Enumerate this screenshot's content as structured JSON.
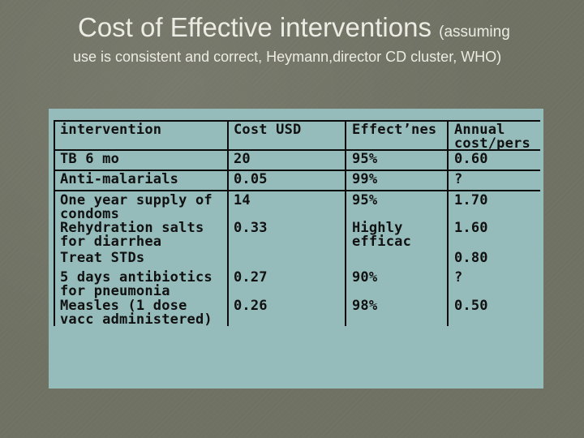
{
  "slide": {
    "title_main": "Cost of Effective interventions",
    "title_paren_start": "(assuming",
    "subtitle": "use is consistent and correct, Heymann,director CD cluster, WHO)"
  },
  "table": {
    "headers": [
      "intervention",
      "Cost USD",
      "Effect’nes",
      "Annual\ncost/pers"
    ],
    "rows": [
      [
        "TB 6 mo",
        "20",
        "95%",
        "0.60"
      ],
      [
        "Anti-malarials",
        "0.05",
        "99%",
        "?"
      ],
      [
        "One year supply of\ncondoms",
        "14",
        "95%",
        "1.70"
      ],
      [
        "Rehydration salts\nfor diarrhea",
        "0.33",
        "Highly\nefficac",
        "1.60"
      ],
      [
        "Treat STDs",
        "",
        "",
        "0.80"
      ],
      [
        "5 days antibiotics\nfor pneumonia",
        "0.27",
        "90%",
        "?"
      ],
      [
        "Measles (1 dose\nvacc administered)",
        "0.26",
        "98%",
        "0.50"
      ]
    ]
  }
}
